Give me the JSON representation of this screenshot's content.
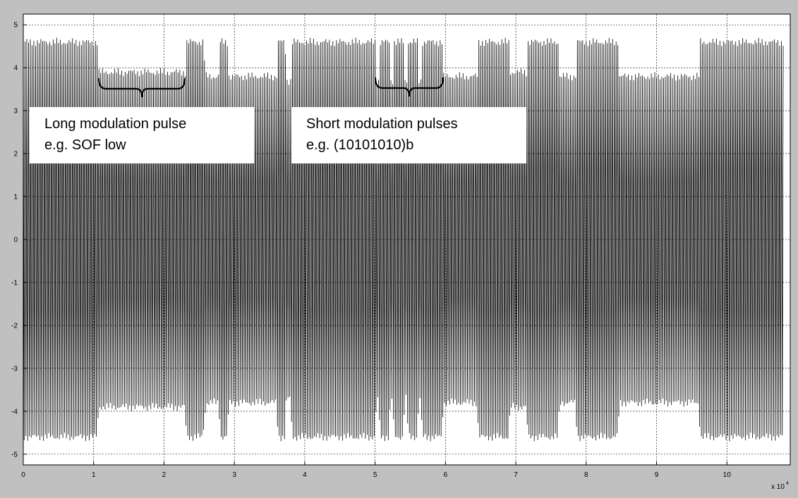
{
  "chart_data": {
    "type": "line",
    "title": "",
    "xlabel": "",
    "ylabel": "",
    "x_exponent_label": "x 10",
    "x_exponent_power": "4",
    "xlim": [
      0,
      10.9
    ],
    "ylim": [
      -5.25,
      5.25
    ],
    "xticks": [
      "0",
      "1",
      "2",
      "3",
      "4",
      "5",
      "6",
      "7",
      "8",
      "9",
      "10"
    ],
    "yticks": [
      "5",
      "4",
      "3",
      "2",
      "1",
      "0",
      "-1",
      "-2",
      "-3",
      "-4",
      "-5"
    ],
    "grid": true,
    "legend": "none",
    "series": [
      {
        "color": "#000000",
        "description_values": {
          "carrier_cycles_per_1e4": 40,
          "amplitude_unmodulated": 4.6,
          "amplitude_modulated_range": [
            3.5,
            3.9
          ],
          "envelope": [
            [
              0.0,
              4.6
            ],
            [
              1.05,
              4.6
            ],
            [
              1.07,
              3.9
            ],
            [
              2.3,
              3.9
            ],
            [
              2.32,
              4.6
            ],
            [
              2.55,
              4.6
            ],
            [
              2.6,
              3.8
            ],
            [
              2.78,
              3.8
            ],
            [
              2.8,
              4.6
            ],
            [
              2.9,
              4.6
            ],
            [
              2.92,
              3.8
            ],
            [
              3.6,
              3.8
            ],
            [
              3.62,
              4.6
            ],
            [
              3.72,
              4.6
            ],
            [
              3.74,
              3.7
            ],
            [
              3.8,
              3.7
            ],
            [
              3.82,
              4.6
            ],
            [
              5.0,
              4.6
            ],
            [
              5.02,
              3.7
            ],
            [
              5.05,
              3.7
            ],
            [
              5.07,
              4.6
            ],
            [
              5.2,
              4.6
            ],
            [
              5.22,
              3.7
            ],
            [
              5.25,
              3.7
            ],
            [
              5.27,
              4.6
            ],
            [
              5.4,
              4.6
            ],
            [
              5.42,
              3.7
            ],
            [
              5.45,
              3.7
            ],
            [
              5.47,
              4.6
            ],
            [
              5.6,
              4.6
            ],
            [
              5.62,
              3.7
            ],
            [
              5.65,
              3.7
            ],
            [
              5.67,
              4.6
            ],
            [
              5.95,
              4.6
            ],
            [
              5.97,
              3.8
            ],
            [
              6.45,
              3.8
            ],
            [
              6.47,
              4.6
            ],
            [
              6.9,
              4.6
            ],
            [
              6.92,
              3.9
            ],
            [
              7.15,
              3.9
            ],
            [
              7.17,
              4.6
            ],
            [
              7.6,
              4.6
            ],
            [
              7.62,
              3.8
            ],
            [
              7.85,
              3.8
            ],
            [
              7.87,
              4.6
            ],
            [
              8.45,
              4.6
            ],
            [
              8.47,
              3.8
            ],
            [
              9.6,
              3.8
            ],
            [
              9.62,
              4.6
            ],
            [
              10.8,
              4.6
            ]
          ]
        }
      }
    ],
    "annotations": [
      {
        "line1": "Long modulation pulse",
        "line2": "e.g. SOF low"
      },
      {
        "line1": "Short modulation pulses",
        "line2": "e.g. (10101010)b"
      }
    ]
  }
}
